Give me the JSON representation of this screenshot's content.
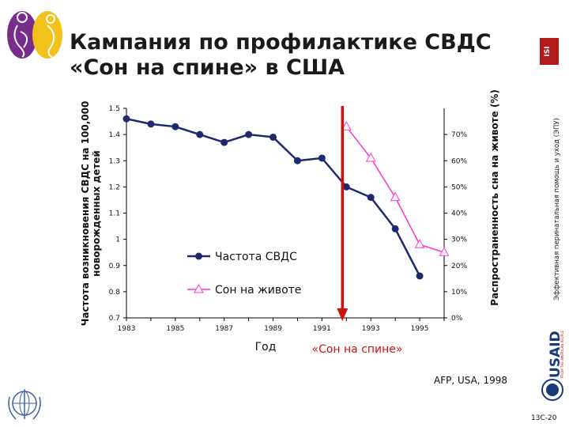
{
  "slide": {
    "title": "Кампания по профилактике СВДС «Сон на спине» в США",
    "source": "AFP, USA, 1998",
    "slide_number": "13C-20",
    "side_text": "Эффективная перинатальная помощь и уход (ЭПУ)",
    "logo_right_text": "ISI",
    "usaid_text": "USAID",
    "usaid_subtext": "FROM THE AMERICAN PEOPLE"
  },
  "colors": {
    "sids_line": "#1f2a6e",
    "stomach_line": "#ff33cc",
    "campaign_arrow": "#cc1111",
    "title": "#1a1a1a"
  },
  "chart_data": {
    "type": "line",
    "x": [
      1983,
      1984,
      1985,
      1986,
      1987,
      1988,
      1989,
      1990,
      1991,
      1992,
      1993,
      1994,
      1995,
      1996
    ],
    "x_ticks": [
      "1983",
      "1985",
      "1987",
      "1989",
      "1991",
      "1993",
      "1995"
    ],
    "xlim": [
      1983,
      1996
    ],
    "xlabel": "Год",
    "ylabel_left": "Частота возникновения СВДС на 100,000 новорожденных детей",
    "ylabel_right": "Распространенность сна на животе (%)",
    "ylim_left": [
      0.7,
      1.5
    ],
    "yticks_left": [
      "0.7",
      "0.8",
      "0.9",
      "1",
      "1.1",
      "1.2",
      "1.3",
      "1.4",
      "1.5"
    ],
    "ylim_right": [
      0,
      80
    ],
    "yticks_right": [
      "0%",
      "10%",
      "20%",
      "30%",
      "40%",
      "50%",
      "60%",
      "70%"
    ],
    "legend_position": "lower-left",
    "grid": false,
    "series": [
      {
        "name": "Частота СВДС",
        "axis": "left",
        "marker": "circle",
        "x": [
          1983,
          1984,
          1985,
          1986,
          1987,
          1988,
          1989,
          1990,
          1991,
          1992,
          1993,
          1994,
          1995
        ],
        "values": [
          1.46,
          1.44,
          1.43,
          1.4,
          1.37,
          1.4,
          1.39,
          1.3,
          1.31,
          1.2,
          1.16,
          1.04,
          0.86
        ]
      },
      {
        "name": "Сон на животе",
        "axis": "right",
        "marker": "triangle",
        "x": [
          1992,
          1993,
          1994,
          1995,
          1996
        ],
        "values": [
          73,
          61,
          46,
          28,
          25
        ]
      }
    ],
    "annotations": [
      {
        "text": "«Сон на спине»",
        "x": 1992
      }
    ]
  }
}
